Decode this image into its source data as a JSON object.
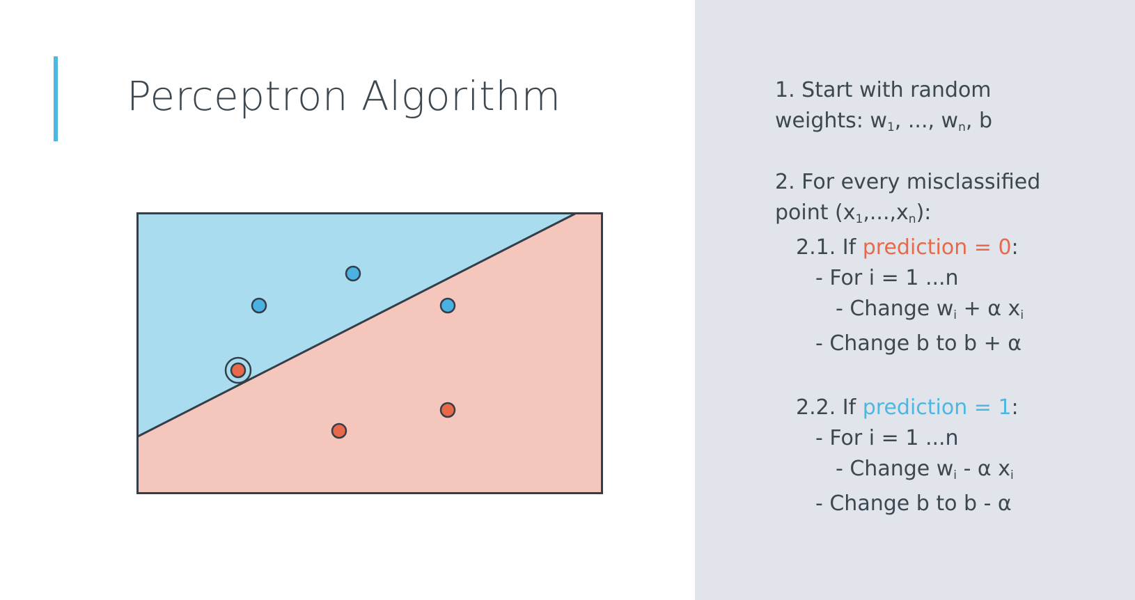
{
  "slide": {
    "title": "Perceptron Algorithm",
    "accent_color": "#4ab8e3"
  },
  "diagram": {
    "colors": {
      "blue_region": "#a9dcee",
      "red_region": "#f5c6bc",
      "blue_point": "#4ab1e2",
      "red_point": "#e8694a",
      "outline": "#333e48"
    },
    "points": [
      {
        "class": "blue",
        "misclassified": false
      },
      {
        "class": "blue",
        "misclassified": false
      },
      {
        "class": "blue",
        "misclassified": false
      },
      {
        "class": "red",
        "misclassified": true
      },
      {
        "class": "red",
        "misclassified": false
      },
      {
        "class": "red",
        "misclassified": false
      }
    ]
  },
  "steps": {
    "step1_line1": "1. Start with random",
    "step1_line2_pre": "weights: w",
    "step1_sub1": "1",
    "step1_mid": ", ..., w",
    "step1_subn": "n",
    "step1_post": ", b",
    "step2_line1": "2. For every misclassified",
    "step2_line2_pre": "point (x",
    "step2_sub1": "1",
    "step2_mid": ",...,x",
    "step2_subn": "n",
    "step2_post": "):",
    "s21_prefix": "2.1. If ",
    "s21_condition": "prediction = 0",
    "s21_colon": ":",
    "s21_for": "- For i = 1 ...n",
    "s21_change_w_pre": "- Change w",
    "s21_change_w_sub": "i",
    "s21_change_w_mid": " + α x",
    "s21_change_w_sub2": "i",
    "s21_change_b": "- Change b to b + α",
    "s22_prefix": "2.2. If ",
    "s22_condition": "prediction = 1",
    "s22_colon": ":",
    "s22_for": "- For i = 1 ...n",
    "s22_change_w_pre": "- Change w",
    "s22_change_w_sub": "i",
    "s22_change_w_mid": " - α x",
    "s22_change_w_sub2": "i",
    "s22_change_b": "- Change b to b - α"
  }
}
